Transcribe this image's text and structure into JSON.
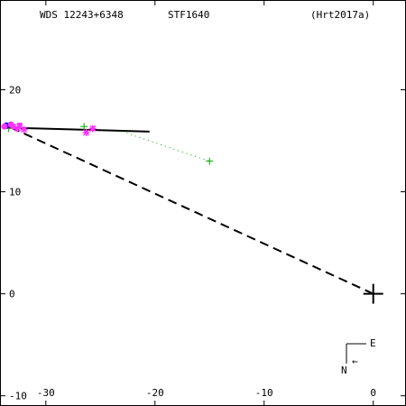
{
  "header": {
    "left": "WDS 12243+6348",
    "center": "STF1640",
    "right": "(Hrt2017a)"
  },
  "compass": {
    "east": "E",
    "north": "N",
    "arrow": "←"
  },
  "chart_data": {
    "type": "scatter",
    "title": "",
    "xlim": [
      -34.2,
      3.0
    ],
    "ylim": [
      -11.0,
      28.8
    ],
    "x_ticks": [
      -30,
      -20,
      -10,
      0
    ],
    "y_ticks": [
      -10,
      0,
      10,
      20
    ],
    "x_tick_labels": [
      "-30",
      "-20",
      "-10",
      "0"
    ],
    "y_tick_labels": [
      "-10",
      "0",
      "10",
      "20"
    ],
    "primary": {
      "x": 0,
      "y": 0
    },
    "orbit_line": {
      "x": [
        -33.8,
        -20.5
      ],
      "y": [
        16.3,
        15.9
      ]
    },
    "dashed_line": {
      "x": [
        0,
        -33.2
      ],
      "y": [
        0,
        16.3
      ]
    },
    "green_dotted": {
      "x": [
        -23.0,
        -15.0
      ],
      "y": [
        15.9,
        13.0
      ]
    },
    "series": [
      {
        "marker": "plus",
        "color": "#00aa00",
        "points": [
          [
            -26.5,
            16.4
          ],
          [
            -15.0,
            13.0
          ],
          [
            -33.4,
            16.2
          ]
        ]
      },
      {
        "marker": "star",
        "color": "#ff33ff",
        "points": [
          [
            -26.3,
            15.8
          ],
          [
            -25.7,
            16.2
          ],
          [
            -32.6,
            16.2
          ],
          [
            -32.0,
            16.1
          ]
        ]
      },
      {
        "marker": "square",
        "color": "#ff33ff",
        "points": [
          [
            -33.0,
            16.4
          ],
          [
            -32.4,
            16.5
          ]
        ]
      },
      {
        "marker": "circle",
        "color": "#0000ff",
        "points": [
          [
            -33.6,
            16.5
          ]
        ]
      },
      {
        "marker": "circle",
        "color": "#ff33ff",
        "points": [
          [
            -33.8,
            16.4
          ],
          [
            -33.2,
            16.6
          ]
        ]
      }
    ]
  }
}
